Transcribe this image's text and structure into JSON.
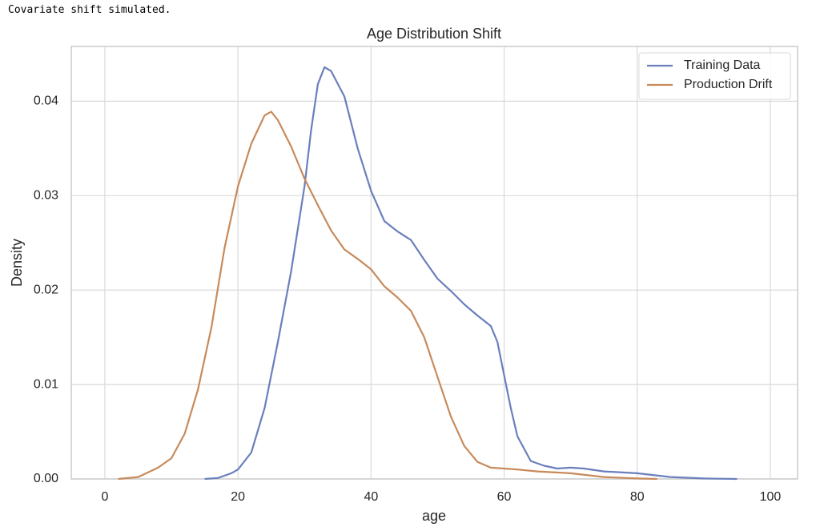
{
  "output_text": "Covariate shift simulated.",
  "chart_data": {
    "type": "line",
    "title": "Age Distribution Shift",
    "xlabel": "age",
    "ylabel": "Density",
    "xlim": [
      -5.05,
      104.1
    ],
    "ylim": [
      0,
      0.0458
    ],
    "xticks": [
      0,
      20,
      40,
      60,
      80,
      100
    ],
    "yticks": [
      {
        "value": 0,
        "label": "0.00"
      },
      {
        "value": 0.01,
        "label": "0.01"
      },
      {
        "value": 0.02,
        "label": "0.02"
      },
      {
        "value": 0.03,
        "label": "0.03"
      },
      {
        "value": 0.04,
        "label": "0.04"
      }
    ],
    "grid": true,
    "legend": "upper right",
    "series": [
      {
        "name": "Training Data",
        "color": "#6a7fbc",
        "x": [
          15,
          17,
          19,
          20,
          22,
          24,
          26,
          28,
          30,
          31,
          32,
          33,
          34,
          36,
          38,
          40,
          42,
          44,
          46,
          48,
          50,
          52,
          54,
          56,
          58,
          59,
          60,
          61,
          62,
          64,
          66,
          68,
          70,
          72,
          75,
          80,
          85,
          90,
          95
        ],
        "values": [
          0,
          0.0001,
          0.0006,
          0.001,
          0.0028,
          0.0075,
          0.0145,
          0.022,
          0.031,
          0.037,
          0.0418,
          0.0436,
          0.0432,
          0.0405,
          0.035,
          0.0305,
          0.0273,
          0.0262,
          0.0253,
          0.0232,
          0.0212,
          0.0199,
          0.0185,
          0.0173,
          0.0162,
          0.0145,
          0.011,
          0.0075,
          0.0045,
          0.0019,
          0.0014,
          0.0011,
          0.0012,
          0.0011,
          0.0008,
          0.0006,
          0.0002,
          5e-05,
          0
        ]
      },
      {
        "name": "Production Drift",
        "color": "#c88a5a",
        "x": [
          2,
          5,
          8,
          10,
          12,
          14,
          16,
          18,
          20,
          22,
          24,
          25,
          26,
          28,
          30,
          32,
          34,
          36,
          38,
          40,
          42,
          44,
          46,
          48,
          50,
          52,
          54,
          56,
          58,
          60,
          62,
          65,
          70,
          75,
          80,
          83
        ],
        "values": [
          0,
          0.0002,
          0.0012,
          0.0022,
          0.0048,
          0.0095,
          0.016,
          0.0245,
          0.031,
          0.0355,
          0.0385,
          0.0389,
          0.038,
          0.0352,
          0.0318,
          0.029,
          0.0263,
          0.0243,
          0.0233,
          0.0222,
          0.0204,
          0.0192,
          0.0178,
          0.015,
          0.0108,
          0.0066,
          0.0035,
          0.0018,
          0.0012,
          0.0011,
          0.001,
          0.0008,
          0.0006,
          0.0002,
          5e-05,
          0
        ]
      }
    ]
  }
}
